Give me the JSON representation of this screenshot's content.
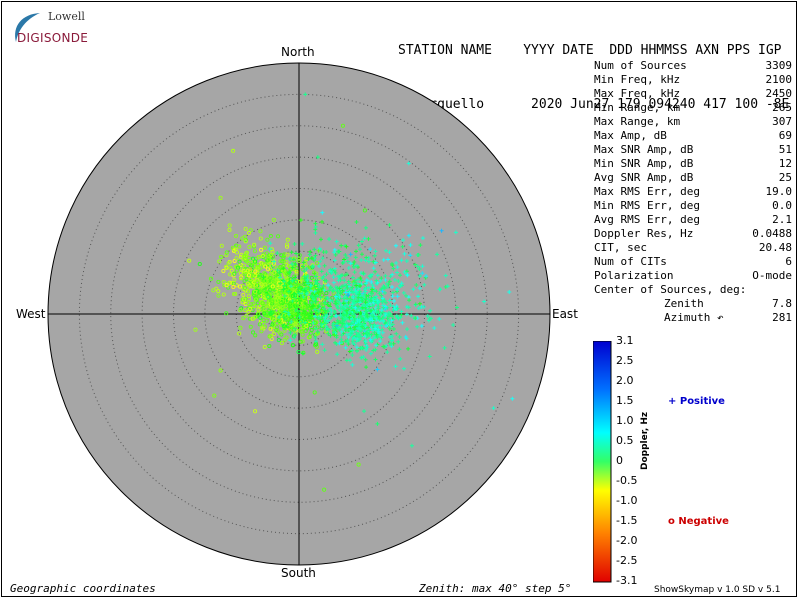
{
  "header": {
    "line1": "STATION NAME    YYYY DATE  DDD HHMMSS AXN PPS IGP",
    "line2": "Pt Arguello      2020 Jun27 179 094240 417 100 -8E"
  },
  "logo": {
    "lowell": "Lowell",
    "digisonde": "DIGISONDE"
  },
  "compass": {
    "north": "North",
    "south": "South",
    "east": "East",
    "west": "West"
  },
  "stats": [
    {
      "label": "Num of Sources",
      "value": "3309"
    },
    {
      "label": "Min Freq, kHz",
      "value": "2100"
    },
    {
      "label": "Max Freq, kHz",
      "value": "2450"
    },
    {
      "label": "Min Range, km",
      "value": "265"
    },
    {
      "label": "Max Range, km",
      "value": "307"
    },
    {
      "label": "Max Amp, dB",
      "value": "69"
    },
    {
      "label": "Max SNR Amp, dB",
      "value": "51"
    },
    {
      "label": "Min SNR Amp, dB",
      "value": "12"
    },
    {
      "label": "Avg SNR Amp, dB",
      "value": "25"
    },
    {
      "label": "Max RMS Err, deg",
      "value": "19.0"
    },
    {
      "label": "Min RMS Err, deg",
      "value": "0.0"
    },
    {
      "label": "Avg RMS Err, deg",
      "value": "2.1"
    },
    {
      "label": "Doppler Res, Hz",
      "value": "0.0488"
    },
    {
      "label": "CIT, sec",
      "value": "20.48"
    },
    {
      "label": "Num of CITs",
      "value": "6"
    },
    {
      "label": "Polarization",
      "value": "O-mode"
    }
  ],
  "center_label": "Center of Sources, deg:",
  "zenith": {
    "label": "Zenith",
    "value": "7.8"
  },
  "azimuth": {
    "label": "Azimuth ↶",
    "value": "281"
  },
  "legend": {
    "positive": "+ Positive",
    "negative": "o Negative",
    "positive_color": "#0000cc",
    "negative_color": "#cc0000"
  },
  "colorbar": {
    "title": "Doppler, Hz",
    "ticks": [
      "3.1",
      "2.5",
      "2.0",
      "1.5",
      "1.0",
      "0.5",
      "0",
      "-0.5",
      "-1.0",
      "-1.5",
      "-2.0",
      "-2.5",
      "-3.1"
    ],
    "min": -3.1,
    "max": 3.1
  },
  "footer": {
    "left": "Geographic coordinates",
    "center": "Zenith: max 40°  step 5°",
    "right": "ShowSkymap v 1.0   SD v 5.1"
  },
  "colors": {
    "plot_background": "#a6a6a6",
    "grid": "#555555"
  },
  "chart_data": {
    "type": "scatter",
    "coordinate_system": "polar-skymap",
    "zenith_max_deg": 40,
    "ring_step_deg": 5,
    "center_zenith_deg": 7.8,
    "center_azimuth_deg": 281,
    "num_sources": 3309,
    "series": [
      {
        "name": "Positive",
        "marker": "+",
        "clusters": [
          {
            "east_deg": 10.0,
            "north_deg": -0.5,
            "spread_deg": 5.0,
            "doppler": 0.9,
            "count": 550
          },
          {
            "east_deg": 4.0,
            "north_deg": 4.5,
            "spread_deg": 7.0,
            "doppler": 0.6,
            "count": 300
          },
          {
            "east_deg": 14.0,
            "north_deg": 3.0,
            "spread_deg": 9.0,
            "doppler": 1.1,
            "count": 200
          }
        ],
        "outliers": [
          {
            "east_deg": 1.0,
            "north_deg": 35.0,
            "doppler": 0.8
          },
          {
            "east_deg": 3.0,
            "north_deg": 25.0,
            "doppler": 0.7
          },
          {
            "east_deg": 17.5,
            "north_deg": 24.0,
            "doppler": 1.3
          },
          {
            "east_deg": 25.0,
            "north_deg": 13.0,
            "doppler": 1.2
          },
          {
            "east_deg": 33.5,
            "north_deg": 3.5,
            "doppler": 1.4
          },
          {
            "east_deg": 34.0,
            "north_deg": -13.5,
            "doppler": 1.5
          },
          {
            "east_deg": 31.0,
            "north_deg": -15.0,
            "doppler": 1.2
          },
          {
            "east_deg": 18.0,
            "north_deg": -21.0,
            "doppler": 0.9
          },
          {
            "east_deg": 12.5,
            "north_deg": -17.5,
            "doppler": 0.6
          },
          {
            "east_deg": 29.5,
            "north_deg": 2.0,
            "doppler": 1.2
          },
          {
            "east_deg": 22.0,
            "north_deg": 9.5,
            "doppler": 0.9
          }
        ]
      },
      {
        "name": "Negative",
        "marker": "o",
        "clusters": [
          {
            "east_deg": -3.5,
            "north_deg": 3.5,
            "spread_deg": 5.5,
            "doppler": -0.7,
            "count": 700
          },
          {
            "east_deg": 0.5,
            "north_deg": 0.5,
            "spread_deg": 4.5,
            "doppler": -0.3,
            "count": 300
          },
          {
            "east_deg": -8.0,
            "north_deg": 7.5,
            "spread_deg": 4.5,
            "doppler": -0.9,
            "count": 150
          }
        ],
        "outliers": [
          {
            "east_deg": 7.0,
            "north_deg": 30.0,
            "doppler": -0.5
          },
          {
            "east_deg": -10.5,
            "north_deg": 26.0,
            "doppler": -1.0
          },
          {
            "east_deg": -17.5,
            "north_deg": 8.5,
            "doppler": -1.1
          },
          {
            "east_deg": -16.5,
            "north_deg": -2.5,
            "doppler": -0.9
          },
          {
            "east_deg": -12.5,
            "north_deg": -9.0,
            "doppler": -0.8
          },
          {
            "east_deg": -13.5,
            "north_deg": -13.0,
            "doppler": -0.7
          },
          {
            "east_deg": -7.0,
            "north_deg": -15.5,
            "doppler": -1.2
          },
          {
            "east_deg": 4.0,
            "north_deg": -28.0,
            "doppler": -0.5
          },
          {
            "east_deg": 9.5,
            "north_deg": -24.0,
            "doppler": -0.6
          },
          {
            "east_deg": 2.5,
            "north_deg": -12.5,
            "doppler": -0.4
          },
          {
            "east_deg": 10.5,
            "north_deg": 16.5,
            "doppler": -0.3
          },
          {
            "east_deg": -4.0,
            "north_deg": 15.0,
            "doppler": -0.8
          },
          {
            "east_deg": -12.5,
            "north_deg": 18.5,
            "doppler": -0.9
          }
        ]
      }
    ]
  }
}
